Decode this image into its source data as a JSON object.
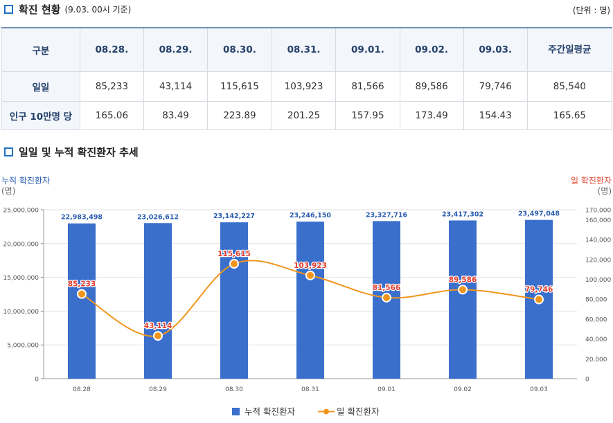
{
  "header": {
    "title": "확진 현황",
    "subtitle": "(9.03. 00시 기준)",
    "unit": "(단위 : 명)"
  },
  "table": {
    "columns": [
      "구분",
      "08.28.",
      "08.29.",
      "08.30.",
      "08.31.",
      "09.01.",
      "09.02.",
      "09.03.",
      "주간일평균"
    ],
    "rows": [
      {
        "label": "일일",
        "values": [
          "85,233",
          "43,114",
          "115,615",
          "103,923",
          "81,566",
          "89,586",
          "79,746",
          "85,540"
        ]
      },
      {
        "label": "인구 10만명 당",
        "values": [
          "165.06",
          "83.49",
          "223.89",
          "201.25",
          "157.95",
          "173.49",
          "154.43",
          "165.65"
        ]
      }
    ]
  },
  "chart_section": {
    "title": "일일 및 누적 확진환자 추세"
  },
  "chart_data": {
    "type": "bar",
    "title": "일일 및 누적 확진환자 추세",
    "categories": [
      "08.28",
      "08.29",
      "08.30",
      "08.31",
      "09.01",
      "09.02",
      "09.03"
    ],
    "left_axis": {
      "title_line1": "누적 확진환자",
      "title_line2": "(명)",
      "ylim": [
        0,
        25000000
      ],
      "ticks": [
        "0",
        "5,000,000",
        "10,000,000",
        "15,000,000",
        "20,000,000",
        "25,000,000"
      ]
    },
    "right_axis": {
      "title_line1": "일 확진환자",
      "title_line2": "(명)",
      "ylim": [
        0,
        170000
      ],
      "ticks": [
        "0",
        "20,000",
        "40,000",
        "60,000",
        "80,000",
        "100,000",
        "120,000",
        "140,000",
        "160,000",
        "170,000"
      ]
    },
    "series": [
      {
        "name": "누적 확진환자",
        "type": "bar",
        "axis": "left",
        "values": [
          22983498,
          23026612,
          23142227,
          23246150,
          23327716,
          23417302,
          23497048
        ],
        "labels": [
          "22,983,498",
          "23,026,612",
          "23,142,227",
          "23,246,150",
          "23,327,716",
          "23,417,302",
          "23,497,048"
        ]
      },
      {
        "name": "일 확진환자",
        "type": "line",
        "axis": "right",
        "values": [
          85233,
          43114,
          115615,
          103923,
          81566,
          89586,
          79746
        ],
        "labels": [
          "85,233",
          "43,114",
          "115,615",
          "103,923",
          "81,566",
          "89,586",
          "79,746"
        ]
      }
    ],
    "legend": "bottom",
    "colors": {
      "bar": "#3a6fcc",
      "line": "#f0961e",
      "bar_label": "#2a5db0",
      "line_label": "#e33c2a",
      "left_title": "#2a5db0",
      "right_title": "#e04a34",
      "grid": "#e2e2e2"
    }
  }
}
